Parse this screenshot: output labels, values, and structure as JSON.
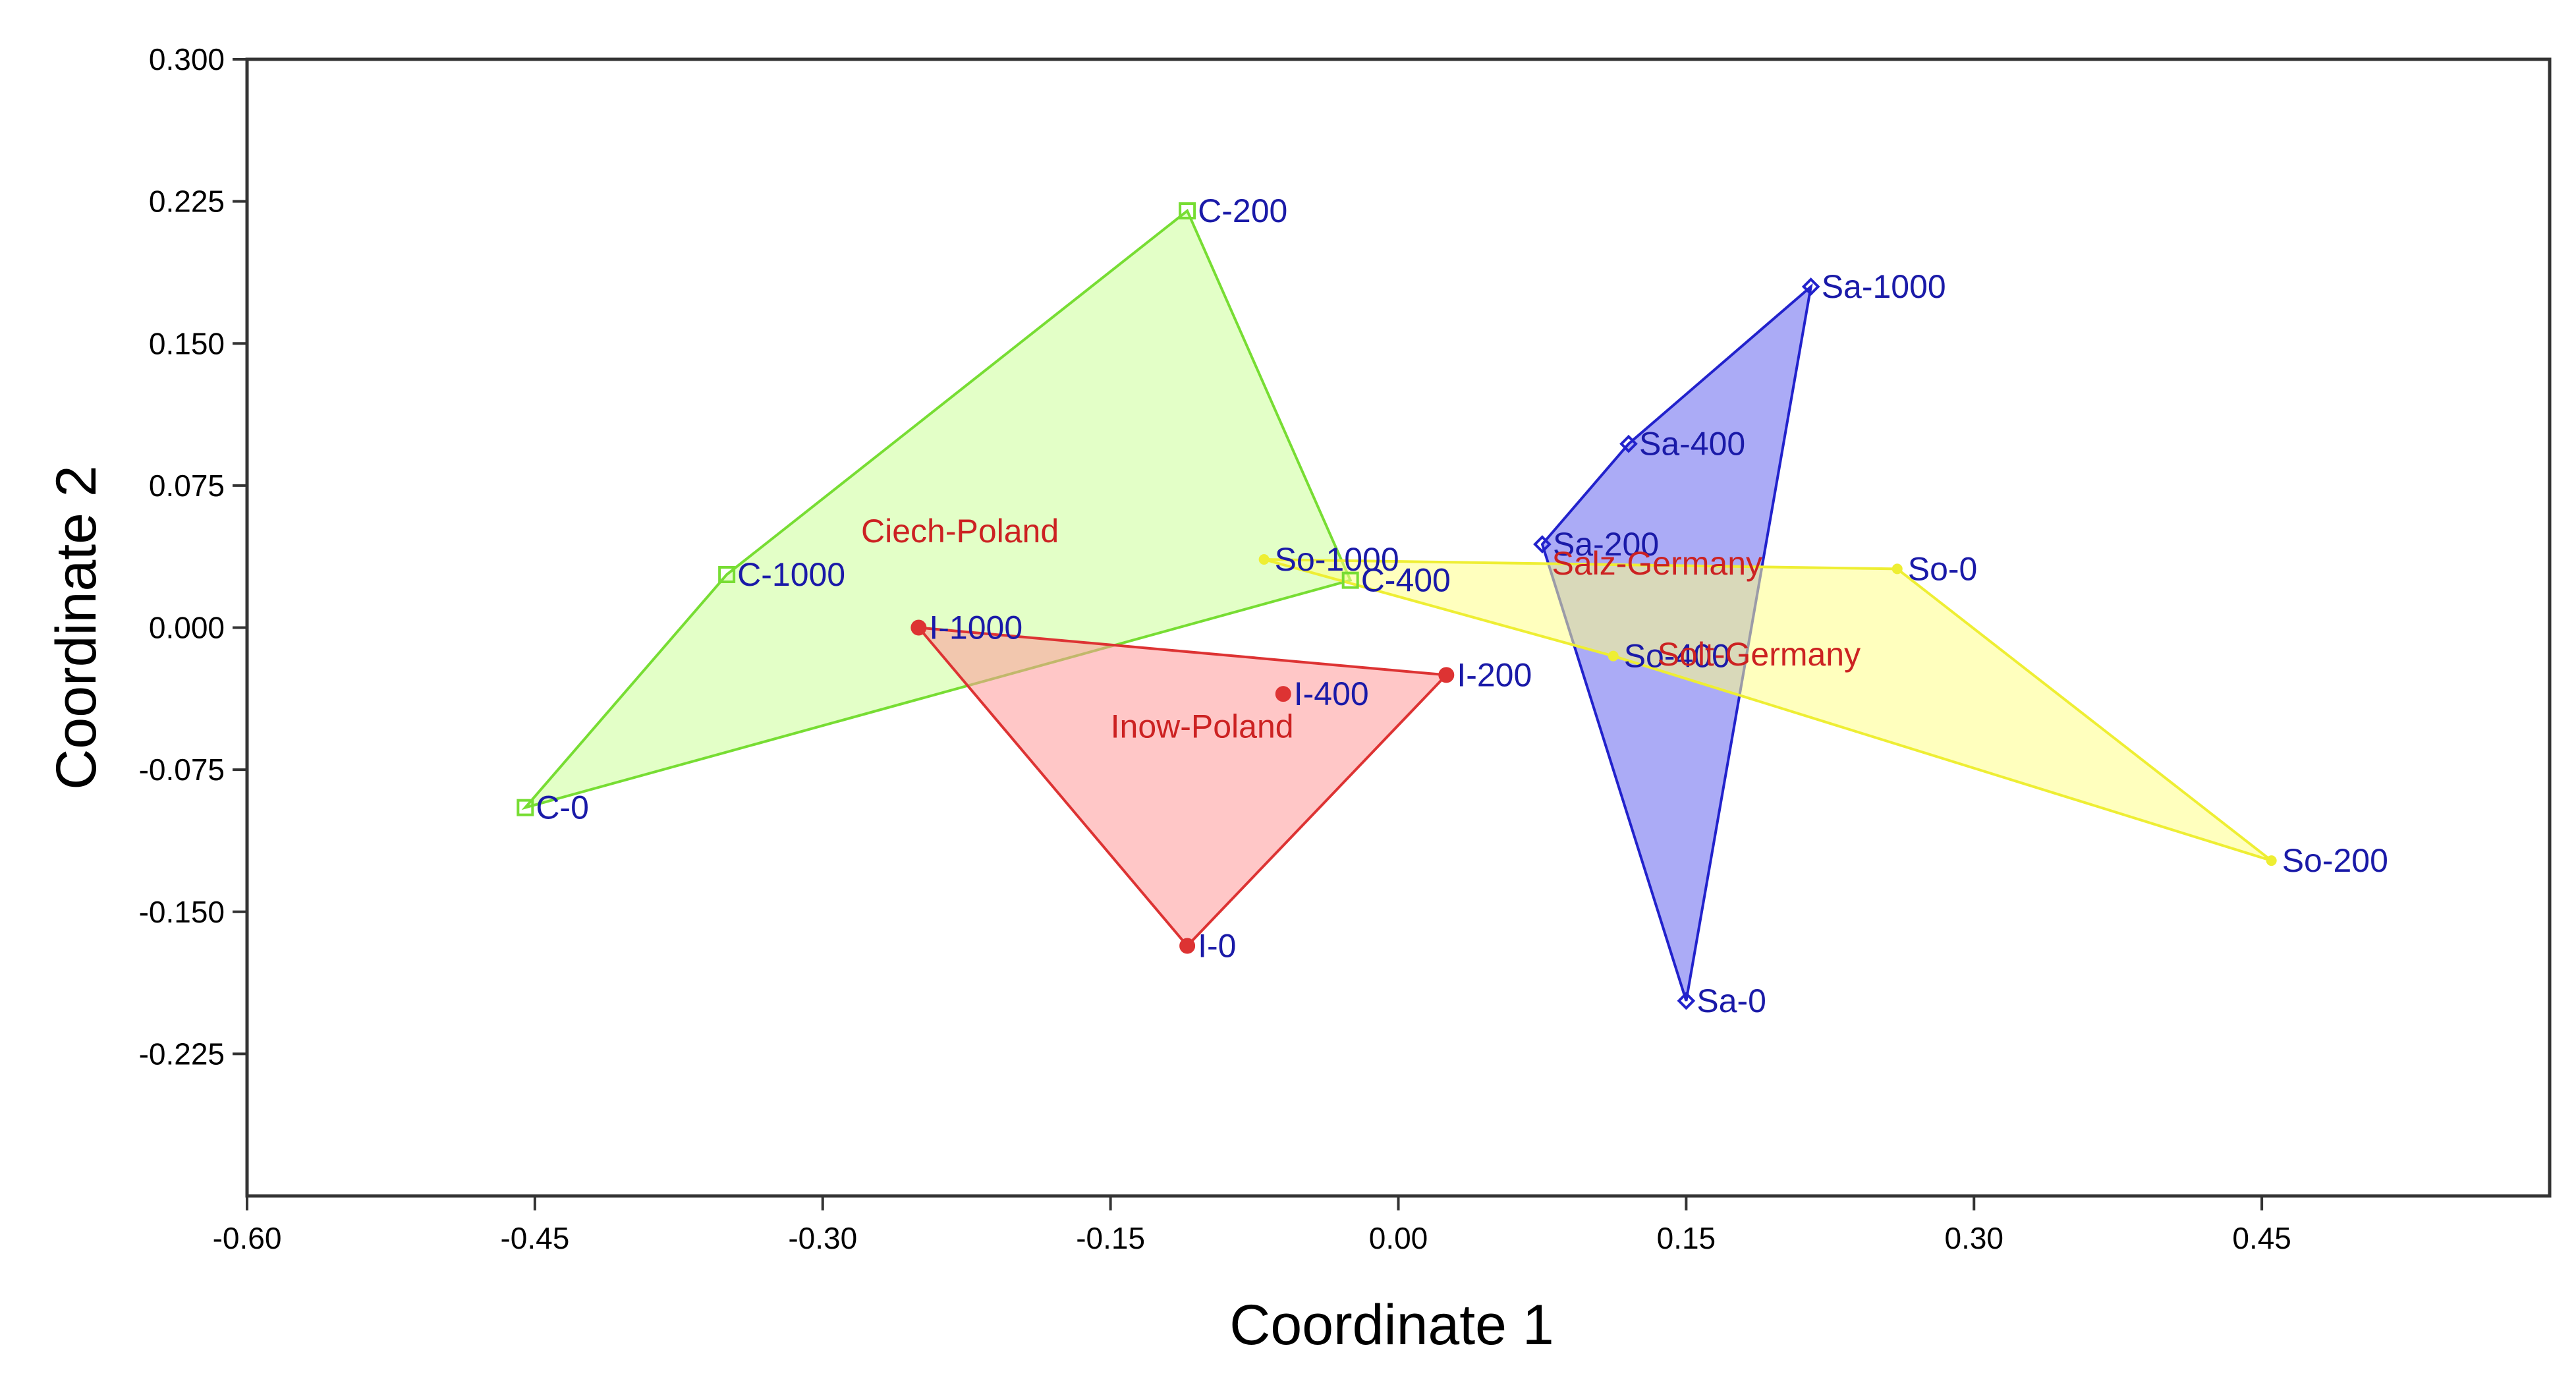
{
  "chart_data": {
    "type": "scatter",
    "title": "",
    "xlabel": "Coordinate 1",
    "ylabel": "Coordinate 2",
    "xlim": [
      -0.6,
      0.6
    ],
    "ylim": [
      -0.3,
      0.3
    ],
    "xticks": [
      -0.6,
      -0.45,
      -0.3,
      -0.15,
      0.0,
      0.15,
      0.3,
      0.45
    ],
    "xtick_labels": [
      "-0.60",
      "-0.45",
      "-0.30",
      "-0.15",
      "0.00",
      "0.15",
      "0.30",
      "0.45"
    ],
    "yticks": [
      0.3,
      0.225,
      0.15,
      0.075,
      0.0,
      -0.075,
      -0.15,
      -0.225
    ],
    "ytick_labels": [
      "0.300",
      "0.225",
      "0.150",
      "0.075",
      "0.000",
      "-0.075",
      "-0.150",
      "-0.225"
    ],
    "grid": false,
    "series": [
      {
        "name": "Ciech-Poland",
        "marker": "square",
        "fill": "#ccff99",
        "stroke": "#77dd33",
        "label_color": "#cc2222",
        "label_offset": [
          -0.28,
          0.045
        ],
        "hull": [
          "C-0",
          "C-1000",
          "C-200",
          "C-400"
        ],
        "points": [
          {
            "label": "C-200",
            "x": -0.11,
            "y": 0.22
          },
          {
            "label": "C-1000",
            "x": -0.35,
            "y": 0.028
          },
          {
            "label": "C-400",
            "x": -0.025,
            "y": 0.025
          },
          {
            "label": "C-0",
            "x": -0.455,
            "y": -0.095
          }
        ]
      },
      {
        "name": "Inow-Poland",
        "marker": "circle",
        "fill": "#ff9999",
        "stroke": "#dd3333",
        "label_color": "#cc2222",
        "label_offset": [
          -0.15,
          -0.058
        ],
        "hull": [
          "I-1000",
          "I-200",
          "I-0"
        ],
        "points": [
          {
            "label": "I-1000",
            "x": -0.25,
            "y": 0.0
          },
          {
            "label": "I-400",
            "x": -0.06,
            "y": -0.035
          },
          {
            "label": "I-200",
            "x": 0.025,
            "y": -0.025
          },
          {
            "label": "I-0",
            "x": -0.11,
            "y": -0.168
          }
        ]
      },
      {
        "name": "Salz-Germany",
        "marker": "diamond",
        "fill": "#6666ee",
        "stroke": "#2222cc",
        "label_color": "#cc2222",
        "label_offset": [
          0.08,
          0.028
        ],
        "hull": [
          "Sa-200",
          "Sa-400",
          "Sa-1000",
          "Sa-0"
        ],
        "points": [
          {
            "label": "Sa-1000",
            "x": 0.215,
            "y": 0.18
          },
          {
            "label": "Sa-400",
            "x": 0.12,
            "y": 0.097
          },
          {
            "label": "Sa-200",
            "x": 0.075,
            "y": 0.044
          },
          {
            "label": "Sa-0",
            "x": 0.15,
            "y": -0.197
          }
        ]
      },
      {
        "name": "Solt-Germany",
        "marker": "circle-small",
        "fill": "#ffff88",
        "stroke": "#eeee33",
        "label_color": "#cc2222",
        "label_offset": [
          0.135,
          -0.02
        ],
        "hull": [
          "So-1000",
          "So-0",
          "So-200",
          "So-400"
        ],
        "points": [
          {
            "label": "So-1000",
            "x": -0.07,
            "y": 0.036
          },
          {
            "label": "So-0",
            "x": 0.26,
            "y": 0.031
          },
          {
            "label": "So-400",
            "x": 0.112,
            "y": -0.015
          },
          {
            "label": "So-200",
            "x": 0.455,
            "y": -0.123
          }
        ]
      }
    ]
  }
}
